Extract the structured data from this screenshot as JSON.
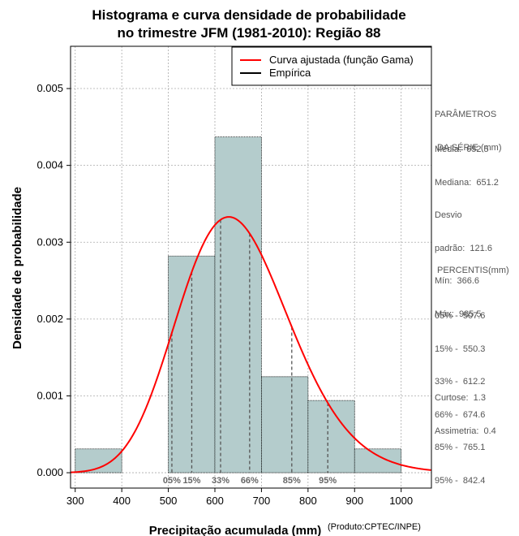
{
  "chart_data": {
    "type": "histogram",
    "title_line1": "Histograma e curva densidade de probabilidade",
    "title_line2": "no trimestre JFM (1981-2010): Região 88",
    "xlabel": "Precipitação acumulada (mm)",
    "ylabel": "Densidade de probabilidade",
    "credit": "(Produto:CPTEC/INPE)",
    "xlim": [
      290,
      1065
    ],
    "ylim": [
      -0.0002,
      0.00555
    ],
    "x_ticks": [
      300,
      400,
      500,
      600,
      700,
      800,
      900,
      1000
    ],
    "y_ticks": [
      0.0,
      0.001,
      0.002,
      0.003,
      0.004,
      0.005
    ],
    "y_tick_labels": [
      "0.000",
      "0.001",
      "0.002",
      "0.003",
      "0.004",
      "0.005"
    ],
    "bins": [
      {
        "start": 300,
        "end": 400,
        "density": 0.00031
      },
      {
        "start": 400,
        "end": 500,
        "density": 0.0
      },
      {
        "start": 500,
        "end": 600,
        "density": 0.00282
      },
      {
        "start": 600,
        "end": 700,
        "density": 0.00437
      },
      {
        "start": 700,
        "end": 800,
        "density": 0.00125
      },
      {
        "start": 800,
        "end": 900,
        "density": 0.00094
      },
      {
        "start": 900,
        "end": 1000,
        "density": 0.00031
      }
    ],
    "fitted_curve": {
      "name": "Curva ajustada (função Gama)",
      "color": "#ff0000",
      "mean": 652.5,
      "sd": 121.6,
      "x_range": [
        290,
        1065
      ]
    },
    "percentile_markers": [
      {
        "label": "05%",
        "value": 507.6
      },
      {
        "label": "15%",
        "value": 550.3
      },
      {
        "label": "33%",
        "value": 612.2
      },
      {
        "label": "66%",
        "value": 674.6
      },
      {
        "label": "85%",
        "value": 765.1
      },
      {
        "label": "95%",
        "value": 842.4
      }
    ],
    "legend": [
      {
        "label": "Curva ajustada (função Gama)",
        "color": "#ff0000"
      },
      {
        "label": "Empírica",
        "color": "#000000"
      }
    ],
    "legend_position": "top-right",
    "grid": true,
    "colors": {
      "bar_fill": "#b4cccc",
      "grid": "#aaaaaa"
    }
  },
  "side_panel": {
    "params_header_1": "PARÂMETROS",
    "params_header_2": " DA SÉRIE (mm)",
    "params": [
      "Média:  652.5",
      "Mediana:  651.2",
      "Desvio",
      "padrão:  121.6",
      "Mín:  366.6",
      "Máx:  985.5"
    ],
    "percentis_header": " PERCENTIS(mm)",
    "percentis": [
      "05% -  507.6",
      "15% -  550.3",
      "33% -  612.2",
      "66% -  674.6",
      "85% -  765.1",
      "95% -  842.4"
    ],
    "stats": [
      "Curtose:  1.3",
      "Assimetria:  0.4"
    ]
  }
}
